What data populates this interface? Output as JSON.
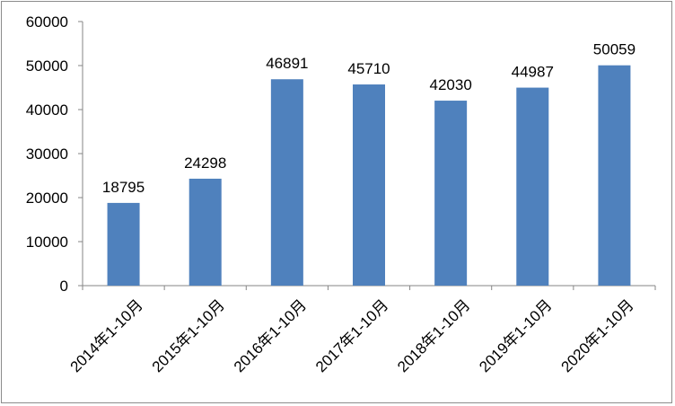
{
  "chart_data": {
    "type": "bar",
    "title": "",
    "xlabel": "",
    "ylabel": "",
    "categories": [
      "2014年1-10月",
      "2015年1-10月",
      "2016年1-10月",
      "2017年1-10月",
      "2018年1-10月",
      "2019年1-10月",
      "2020年1-10月"
    ],
    "values": [
      18795,
      24298,
      46891,
      45710,
      42030,
      44987,
      50059
    ],
    "data_labels": [
      "18795",
      "24298",
      "46891",
      "45710",
      "42030",
      "44987",
      "50059"
    ],
    "ylim": [
      0,
      60000
    ],
    "yticks": [
      0,
      10000,
      20000,
      30000,
      40000,
      50000,
      60000
    ],
    "ytick_labels": [
      "0",
      "10000",
      "20000",
      "30000",
      "40000",
      "50000",
      "60000"
    ],
    "grid": false,
    "legend": "none",
    "bar_color": "#4f81bd",
    "axis_color": "#868686"
  }
}
